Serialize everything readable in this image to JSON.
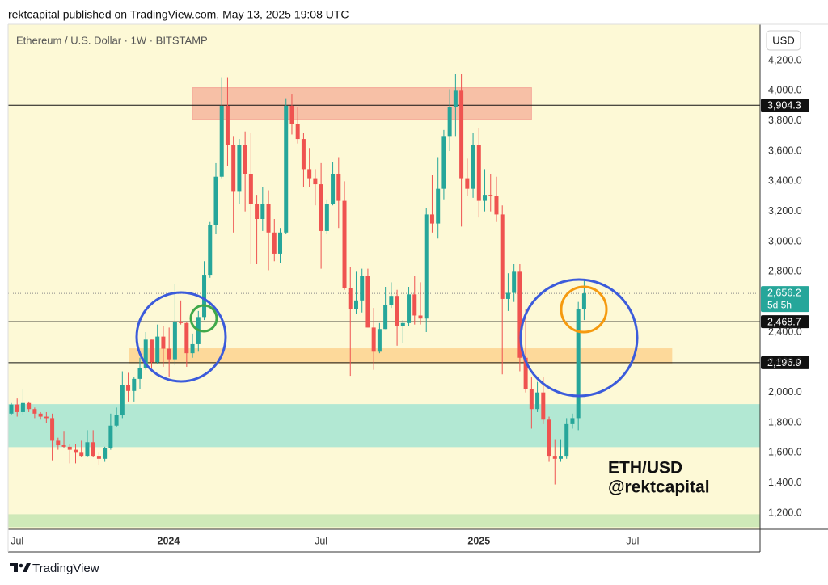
{
  "header": "rektcapital published on TradingView.com, May 13, 2025 19:08 UTC",
  "footer": "TradingView",
  "chart_data": {
    "type": "candlestick",
    "title": "Ethereum / U.S. Dollar · 1W · BITSTAMP",
    "currency": "USD",
    "up_color": "#26a69a",
    "down_color": "#ef5350",
    "xlim": [
      -0.55,
      128.1
    ],
    "xticks": [
      {
        "value": 1,
        "label": "Jul"
      },
      {
        "value": 26.9,
        "label": "2024"
      },
      {
        "value": 53,
        "label": "Jul"
      },
      {
        "value": 80,
        "label": "2025"
      },
      {
        "value": 106.3,
        "label": "Jul"
      }
    ],
    "ylim": [
      1093,
      4441
    ],
    "yticks": [
      {
        "value": 1200,
        "label": "1,200.0"
      },
      {
        "value": 1400,
        "label": "1,400.0"
      },
      {
        "value": 1600,
        "label": "1,600.0"
      },
      {
        "value": 1800,
        "label": "1,800.0"
      },
      {
        "value": 2000,
        "label": "2,000.0"
      },
      {
        "value": 2200,
        "label": "2,200.0"
      },
      {
        "value": 2400,
        "label": "2,400.0"
      },
      {
        "value": 2600,
        "label": "2,600.0"
      },
      {
        "value": 2800,
        "label": "2,800.0"
      },
      {
        "value": 3000,
        "label": "3,000.0"
      },
      {
        "value": 3200,
        "label": "3,200.0"
      },
      {
        "value": 3400,
        "label": "3,400.0"
      },
      {
        "value": 3600,
        "label": "3,600.0"
      },
      {
        "value": 3800,
        "label": "3,800.0"
      },
      {
        "value": 4000,
        "label": "4,000.0"
      },
      {
        "value": 4200,
        "label": "4,200.0"
      }
    ],
    "open": [
      1860,
      1920,
      1870,
      1930,
      1890,
      1860,
      1840,
      1830,
      1680,
      1650,
      1640,
      1620,
      1600,
      1580,
      1670,
      1580,
      1560,
      1630,
      1780,
      1850,
      2050,
      2010,
      2090,
      2160,
      2350,
      2200,
      2370,
      2290,
      2220,
      2470,
      2460,
      2260,
      2320,
      2500,
      2780,
      3110,
      3430,
      3900,
      3640,
      3330,
      3640,
      3450,
      3250,
      3150,
      3250,
      3060,
      2920,
      3060,
      3900,
      3780,
      3680,
      3480,
      3420,
      3380,
      3070,
      3250,
      3450,
      3270,
      2690,
      2550,
      2610,
      2770,
      2430,
      2270,
      2420,
      2580,
      2640,
      2440,
      2460,
      2650,
      2510,
      2490,
      3180,
      3120,
      3350,
      3700,
      3890,
      4000,
      3420,
      3350,
      3640,
      3270,
      3310,
      3300,
      3180,
      2620,
      2660,
      2800,
      2230,
      2020,
      1890,
      2000,
      1820,
      1580,
      1560,
      1580,
      1790,
      1830,
      2550
    ],
    "high": [
      1930,
      1960,
      2020,
      1940,
      1900,
      1870,
      1870,
      1860,
      1700,
      1740,
      1660,
      1660,
      1680,
      1750,
      1750,
      1600,
      1640,
      1860,
      1900,
      2140,
      2130,
      2100,
      2230,
      2400,
      2350,
      2450,
      2440,
      2430,
      2720,
      2610,
      2470,
      2390,
      2540,
      2870,
      3130,
      3520,
      4090,
      4090,
      3700,
      3680,
      3730,
      3720,
      3310,
      3360,
      3340,
      3150,
      3090,
      3950,
      3980,
      3890,
      3720,
      3620,
      3480,
      3520,
      3280,
      3530,
      3560,
      3400,
      2830,
      2800,
      2820,
      2820,
      2560,
      2460,
      2700,
      2730,
      2680,
      2480,
      2700,
      2770,
      2730,
      3220,
      3440,
      3560,
      3740,
      4010,
      4110,
      4110,
      3550,
      3720,
      3750,
      3480,
      3450,
      3430,
      3240,
      2790,
      2850,
      2850,
      2550,
      2100,
      2070,
      2100,
      1840,
      1690,
      1690,
      1830,
      1860,
      2600,
      2740
    ],
    "low": [
      1850,
      1840,
      1850,
      1870,
      1830,
      1820,
      1800,
      1550,
      1620,
      1630,
      1530,
      1530,
      1570,
      1570,
      1570,
      1520,
      1540,
      1620,
      1770,
      1830,
      1940,
      1940,
      2020,
      2150,
      2160,
      2190,
      2170,
      2100,
      2180,
      2450,
      2170,
      2230,
      2270,
      2480,
      2760,
      3050,
      3420,
      3500,
      3060,
      3250,
      3200,
      2850,
      2850,
      3070,
      2810,
      2870,
      2860,
      3050,
      3710,
      3650,
      3360,
      3360,
      3240,
      2820,
      3050,
      3240,
      3090,
      2680,
      2110,
      2520,
      2530,
      2430,
      2150,
      2260,
      2420,
      2560,
      2310,
      2330,
      2440,
      2450,
      2450,
      2400,
      3060,
      3020,
      3280,
      3600,
      3700,
      3100,
      3300,
      3290,
      3160,
      3200,
      3200,
      3130,
      2120,
      2540,
      2600,
      2140,
      2000,
      1760,
      1870,
      1790,
      1540,
      1390,
      1540,
      1560,
      1760,
      1750,
      2480
    ],
    "close": [
      1920,
      1870,
      1930,
      1890,
      1860,
      1840,
      1830,
      1680,
      1650,
      1640,
      1620,
      1600,
      1580,
      1670,
      1580,
      1560,
      1630,
      1780,
      1850,
      2050,
      2010,
      2090,
      2160,
      2350,
      2200,
      2370,
      2290,
      2220,
      2470,
      2460,
      2260,
      2320,
      2500,
      2780,
      3110,
      3430,
      3900,
      3640,
      3330,
      3640,
      3450,
      3250,
      3150,
      3250,
      3060,
      2920,
      3060,
      3900,
      3780,
      3680,
      3480,
      3420,
      3380,
      3070,
      3250,
      3450,
      3270,
      2690,
      2550,
      2610,
      2770,
      2430,
      2270,
      2420,
      2580,
      2640,
      2440,
      2460,
      2650,
      2510,
      2490,
      3180,
      3120,
      3350,
      3700,
      3890,
      4000,
      3420,
      3350,
      3640,
      3270,
      3310,
      3300,
      3180,
      2620,
      2660,
      2800,
      2230,
      2020,
      1890,
      2000,
      1820,
      1580,
      1560,
      1580,
      1790,
      1830,
      2550,
      2656.2
    ],
    "levels": [
      {
        "value": 3904.3,
        "label": "3,904.3"
      },
      {
        "value": 2468.7,
        "label": "2,468.7"
      },
      {
        "value": 2196.9,
        "label": "2,196.9"
      }
    ],
    "price_line": {
      "value": 2656.2,
      "label": "2,656.2",
      "countdown": "5d 5h",
      "color": "#26a69a"
    },
    "zones": [
      {
        "xlim": [
          31,
          89
        ],
        "ylim": [
          3810,
          4020
        ],
        "color": "#f7c0a6",
        "stroke": "#f4a898"
      },
      {
        "xlim": [
          20.2,
          113
        ],
        "ylim": [
          2195,
          2290
        ],
        "color": "#fdd99a",
        "stroke": "#fdd99a"
      },
      {
        "xlim": [
          -0.55,
          128.1
        ],
        "ylim": [
          1640,
          1920
        ],
        "color": "#b2e8d3",
        "stroke": "#b2e8d3"
      },
      {
        "xlim": [
          -0.55,
          128.1
        ],
        "ylim": [
          1110,
          1190
        ],
        "color": "#cfe9b8",
        "stroke": "#cfe9b8"
      }
    ],
    "annotations": [
      "ETH/USD",
      "@rektcapital"
    ]
  }
}
